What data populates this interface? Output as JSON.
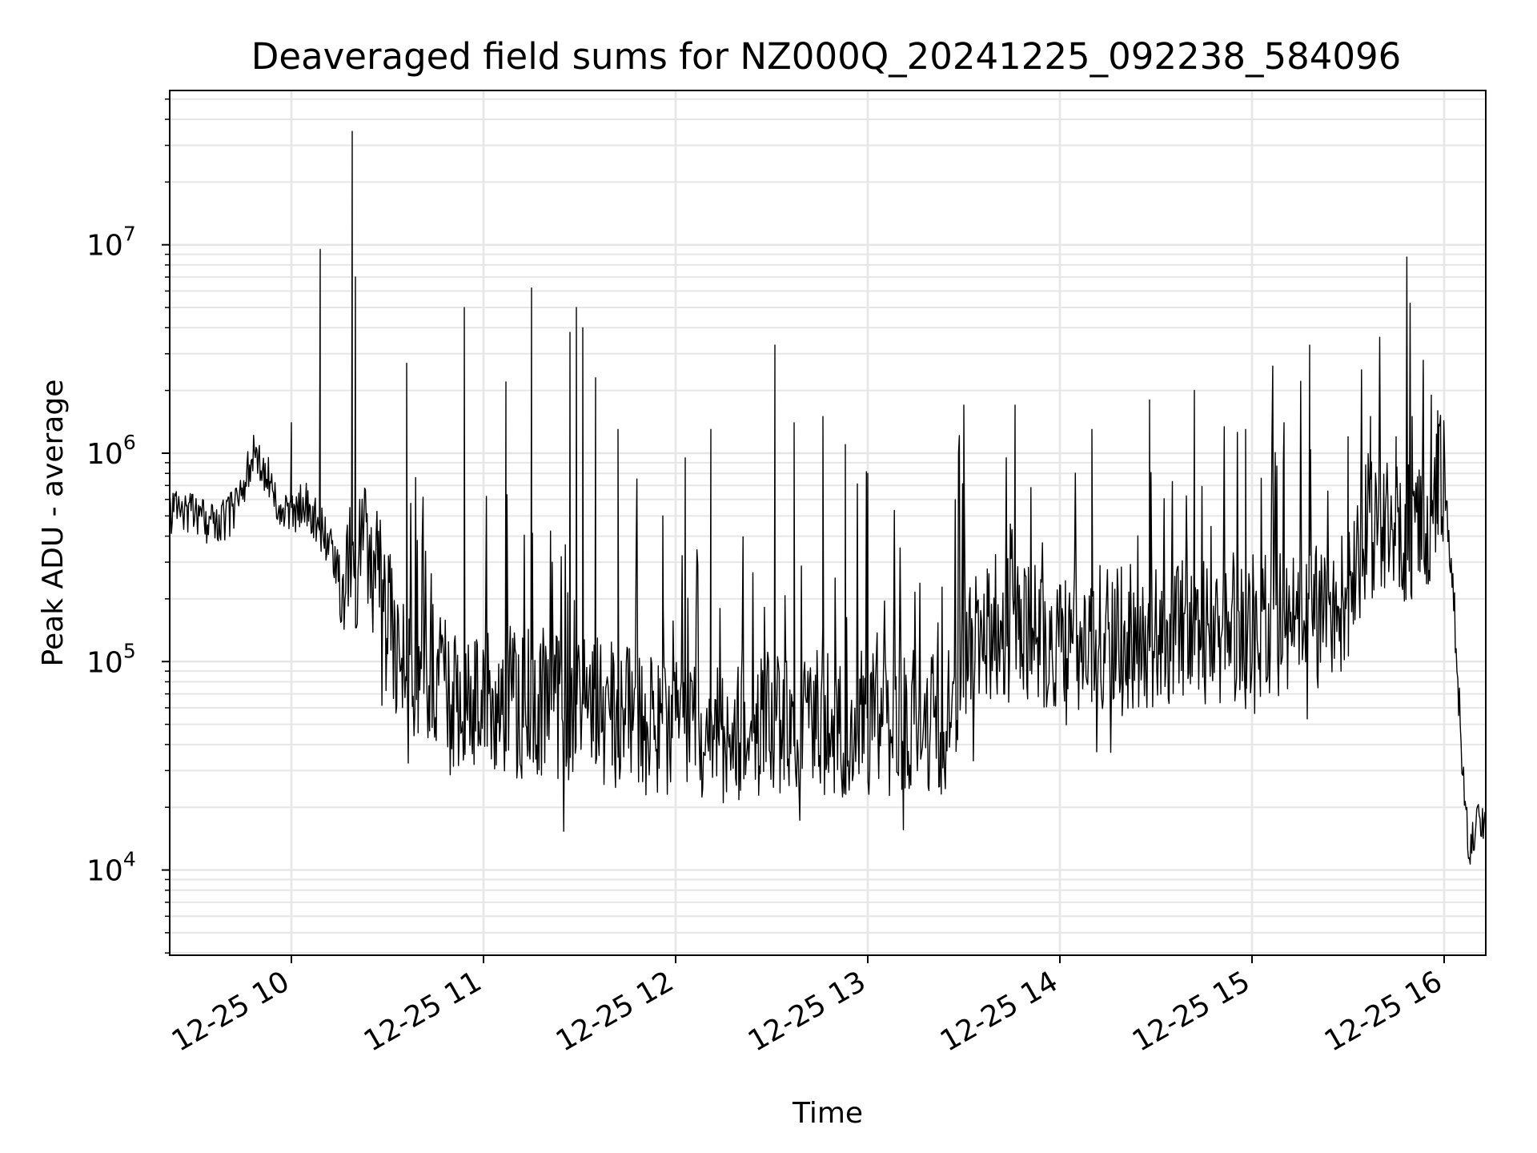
{
  "chart_data": {
    "type": "line",
    "title": "Deaveraged field sums for NZ000Q_20241225_092238_584096",
    "xlabel": "Time",
    "ylabel": "Peak ADU - average",
    "yscale": "log",
    "grid": true,
    "line_color": "#000000",
    "grid_color": "#e6e6e6",
    "xlim": [
      "2024-12-25 09:22",
      "2024-12-25 16:13"
    ],
    "ylim": [
      3900,
      55000000
    ],
    "x_ticks": [
      {
        "value": "2024-12-25 10:00",
        "label": "12-25 10"
      },
      {
        "value": "2024-12-25 11:00",
        "label": "12-25 11"
      },
      {
        "value": "2024-12-25 12:00",
        "label": "12-25 12"
      },
      {
        "value": "2024-12-25 13:00",
        "label": "12-25 13"
      },
      {
        "value": "2024-12-25 14:00",
        "label": "12-25 14"
      },
      {
        "value": "2024-12-25 15:00",
        "label": "12-25 15"
      },
      {
        "value": "2024-12-25 16:00",
        "label": "12-25 16"
      }
    ],
    "y_ticks": [
      {
        "value": 10000,
        "base": "10",
        "exp": "4"
      },
      {
        "value": 100000,
        "base": "10",
        "exp": "5"
      },
      {
        "value": 1000000,
        "base": "10",
        "exp": "6"
      },
      {
        "value": 10000000,
        "base": "10",
        "exp": "7"
      }
    ],
    "series": [
      {
        "x": [
          "2024-12-25 09:22",
          "2024-12-25 09:25",
          "2024-12-25 09:28",
          "2024-12-25 09:32",
          "2024-12-25 09:36",
          "2024-12-25 09:40",
          "2024-12-25 09:44",
          "2024-12-25 09:48",
          "2024-12-25 09:52",
          "2024-12-25 09:55",
          "2024-12-25 09:58",
          "2024-12-25 10:00",
          "2024-12-25 10:04",
          "2024-12-25 10:08",
          "2024-12-25 10:10",
          "2024-12-25 10:14",
          "2024-12-25 10:18",
          "2024-12-25 10:20",
          "2024-12-25 10:22",
          "2024-12-25 10:25",
          "2024-12-25 10:27",
          "2024-12-25 10:30",
          "2024-12-25 10:35",
          "2024-12-25 10:40",
          "2024-12-25 10:45",
          "2024-12-25 10:50",
          "2024-12-25 10:55",
          "2024-12-25 11:00",
          "2024-12-25 11:10",
          "2024-12-25 11:20",
          "2024-12-25 11:30",
          "2024-12-25 11:40",
          "2024-12-25 11:50",
          "2024-12-25 12:00",
          "2024-12-25 12:10",
          "2024-12-25 12:20",
          "2024-12-25 12:30",
          "2024-12-25 12:40",
          "2024-12-25 12:50",
          "2024-12-25 13:00",
          "2024-12-25 13:10",
          "2024-12-25 13:20",
          "2024-12-25 13:25",
          "2024-12-25 13:30",
          "2024-12-25 13:40",
          "2024-12-25 13:50",
          "2024-12-25 14:00",
          "2024-12-25 14:10",
          "2024-12-25 14:20",
          "2024-12-25 14:30",
          "2024-12-25 14:40",
          "2024-12-25 14:50",
          "2024-12-25 15:00",
          "2024-12-25 15:10",
          "2024-12-25 15:20",
          "2024-12-25 15:30",
          "2024-12-25 15:36",
          "2024-12-25 15:40",
          "2024-12-25 15:45",
          "2024-12-25 15:50",
          "2024-12-25 15:55",
          "2024-12-25 15:58",
          "2024-12-25 16:00",
          "2024-12-25 16:03",
          "2024-12-25 16:05",
          "2024-12-25 16:07",
          "2024-12-25 16:08",
          "2024-12-25 16:10",
          "2024-12-25 16:13"
        ],
        "y": [
          550000,
          480000,
          520000,
          500000,
          460000,
          480000,
          650000,
          1050000,
          850000,
          650000,
          500000,
          520000,
          600000,
          480000,
          400000,
          300000,
          250000,
          280000,
          450000,
          400000,
          250000,
          150000,
          100000,
          80000,
          75000,
          70000,
          65000,
          65000,
          65000,
          62000,
          60000,
          55000,
          50000,
          45000,
          45000,
          48000,
          50000,
          52000,
          50000,
          50000,
          50000,
          52000,
          50000,
          110000,
          150000,
          130000,
          130000,
          130000,
          130000,
          135000,
          135000,
          140000,
          150000,
          150000,
          160000,
          200000,
          450000,
          420000,
          400000,
          420000,
          520000,
          650000,
          850000,
          200000,
          50000,
          18000,
          12000,
          17000,
          15000
        ]
      },
      {
        "x": [
          "2024-12-25 10:00",
          "2024-12-25 10:09",
          "2024-12-25 10:19",
          "2024-12-25 10:20",
          "2024-12-25 10:36",
          "2024-12-25 10:54",
          "2024-12-25 11:07",
          "2024-12-25 11:15",
          "2024-12-25 11:27",
          "2024-12-25 11:29",
          "2024-12-25 11:31",
          "2024-12-25 11:35",
          "2024-12-25 11:42",
          "2024-12-25 11:56",
          "2024-12-25 12:03",
          "2024-12-25 12:11",
          "2024-12-25 12:31",
          "2024-12-25 12:37",
          "2024-12-25 12:46",
          "2024-12-25 12:53",
          "2024-12-25 13:00",
          "2024-12-25 13:30",
          "2024-12-25 13:46",
          "2024-12-25 14:10",
          "2024-12-25 14:28",
          "2024-12-25 14:42",
          "2024-12-25 14:58",
          "2024-12-25 15:10",
          "2024-12-25 15:18",
          "2024-12-25 15:30",
          "2024-12-25 15:37",
          "2024-12-25 15:45",
          "2024-12-25 15:50",
          "2024-12-25 15:56",
          "2024-12-25 15:58"
        ],
        "y": [
          1400000,
          9500000,
          35000000,
          7000000,
          2700000,
          5000000,
          2200000,
          6200000,
          3800000,
          5000000,
          4000000,
          2300000,
          1300000,
          500000,
          950000,
          1300000,
          3300000,
          1400000,
          1500000,
          1100000,
          800000,
          1700000,
          1700000,
          1300000,
          1800000,
          2000000,
          1300000,
          1400000,
          3300000,
          1200000,
          1500000,
          1200000,
          1500000,
          1900000,
          1600000
        ]
      }
    ]
  }
}
